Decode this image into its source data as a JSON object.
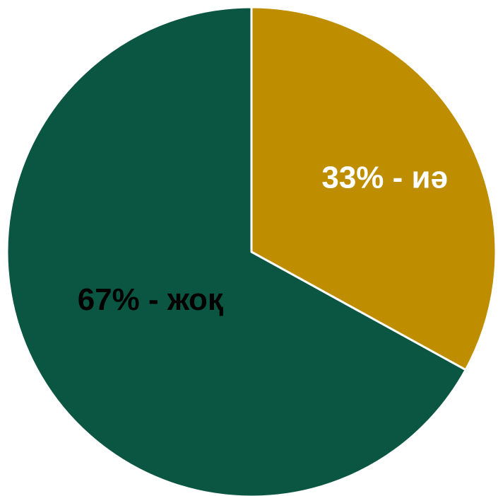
{
  "chart_data": {
    "type": "pie",
    "start_angle_deg": 0,
    "direction": "clockwise",
    "slices": [
      {
        "label": "33% - иә",
        "value": 33,
        "color": "#BE8E00",
        "label_color": "#FFFFFF"
      },
      {
        "label": "67% - жоқ",
        "value": 67,
        "color": "#0B5642",
        "label_color": "#000000"
      }
    ],
    "slice_border_color": "#FFFFFF",
    "legend": "none"
  }
}
